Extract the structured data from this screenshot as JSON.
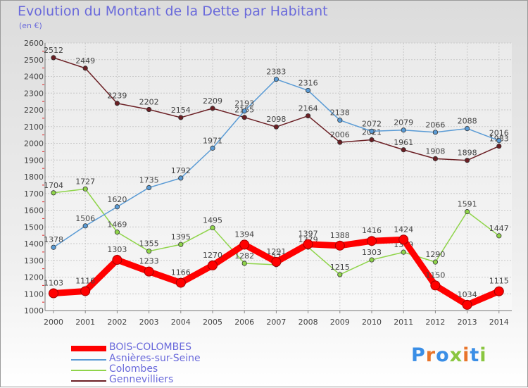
{
  "title": "Evolution du Montant de la Dette par Habitant",
  "subtitle": "(en €)",
  "logo": {
    "text": "Proxiti",
    "colors": [
      "#3a8ee6",
      "#e8742a",
      "#3a8ee6",
      "#8ac640",
      "#e8742a",
      "#3a8ee6",
      "#8ac640"
    ]
  },
  "chart_data": {
    "type": "line",
    "title": "Evolution du Montant de la Dette par Habitant",
    "subtitle": "(en €)",
    "x": [
      "2000",
      "2001",
      "2002",
      "2003",
      "2004",
      "2005",
      "2006",
      "2007",
      "2008",
      "2009",
      "2010",
      "2011",
      "2012",
      "2013",
      "2014"
    ],
    "yticks": [
      "1000",
      "1100",
      "1200",
      "1300",
      "1400",
      "1500",
      "1600",
      "1700",
      "1800",
      "1900",
      "2000",
      "2100",
      "2200",
      "2300",
      "2400",
      "2500",
      "2600"
    ],
    "ylim": [
      1000,
      2600
    ],
    "grid": true,
    "legend_position": "bottom-left",
    "series": [
      {
        "name": "Gennevilliers",
        "color": "#6b1f24",
        "values": [
          2512,
          2449,
          2239,
          2202,
          2154,
          2209,
          2155,
          2098,
          2164,
          2006,
          2021,
          1961,
          1908,
          1898,
          1983
        ],
        "labels": [
          "2512",
          "2449",
          "2239",
          "2202",
          "2154",
          "2209",
          "2155",
          "2098",
          "2164",
          "2006",
          "2021",
          "1961",
          "1908",
          "1898",
          "1983"
        ]
      },
      {
        "name": "Colombes",
        "color": "#8fd44a",
        "values": [
          1704,
          1727,
          1469,
          1355,
          1395,
          1495,
          1282,
          1274,
          1379,
          1215,
          1303,
          1349,
          1290,
          1591,
          1447
        ],
        "labels": [
          "1704",
          "1727",
          "1469",
          "1355",
          "1395",
          "1495",
          "1282",
          "1274",
          "1379",
          "1215",
          "1303",
          "1349",
          "1290",
          "1591",
          "1447"
        ]
      },
      {
        "name": "Asnières-sur-Seine",
        "color": "#5a9bd5",
        "values": [
          1378,
          1506,
          1620,
          1735,
          1792,
          1971,
          2193,
          2383,
          2316,
          2138,
          2072,
          2079,
          2066,
          2088,
          2016
        ],
        "labels": [
          "1378",
          "1506",
          "1620",
          "1735",
          "1792",
          "1971",
          "2193",
          "2383",
          "2316",
          "2138",
          "2072",
          "2079",
          "2066",
          "2088",
          "2016"
        ]
      },
      {
        "name": "BOIS-COLOMBES",
        "color": "#ff0000",
        "values": [
          1103,
          1116,
          1303,
          1233,
          1166,
          1270,
          1394,
          1291,
          1397,
          1388,
          1416,
          1424,
          1150,
          1034,
          1115
        ],
        "labels": [
          "1103",
          "1116",
          "1303",
          "1233",
          "1166",
          "1270",
          "1394",
          "1291",
          "1397",
          "1388",
          "1416",
          "1424",
          "1150",
          "1034",
          "1115"
        ]
      }
    ],
    "legend": [
      "BOIS-COLOMBES",
      "Asnières-sur-Seine",
      "Colombes",
      "Gennevilliers"
    ]
  }
}
